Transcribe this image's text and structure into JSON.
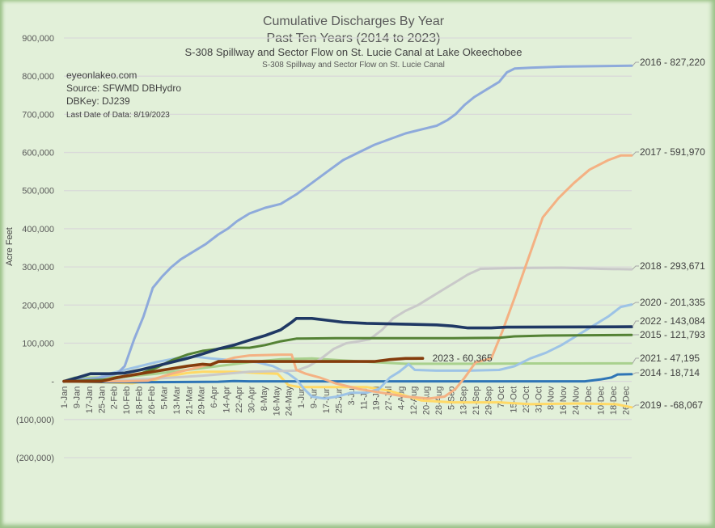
{
  "chart_data": {
    "type": "line",
    "title": "Cumulative Discharges By Year",
    "subtitle": "Past Ten Years (2014 to 2023)",
    "subtitle2": "S-308 Spillway and Sector Flow on St. Lucie Canal at Lake Okeechobee",
    "subtitle3": "S-308 Spillway and Sector Flow on St. Lucie Canal",
    "xlabel": "",
    "ylabel": "Acre Feet",
    "ylim": [
      -200000,
      900000
    ],
    "yticks": [
      900000,
      800000,
      700000,
      600000,
      500000,
      400000,
      300000,
      200000,
      100000,
      0,
      -100000,
      -200000
    ],
    "ytick_labels": [
      "900,000",
      "800,000",
      "700,000",
      "600,000",
      "500,000",
      "400,000",
      "300,000",
      "200,000",
      "100,000",
      "-",
      "(100,000)",
      "(200,000)"
    ],
    "xlim_day_of_year": [
      1,
      365
    ],
    "grid": true,
    "legend": "end-of-line labels (right)",
    "x_tick_labels": [
      "1-Jan",
      "9-Jan",
      "17-Jan",
      "25-Jan",
      "2-Feb",
      "10-Feb",
      "18-Feb",
      "26-Feb",
      "5-Mar",
      "13-Mar",
      "21-Mar",
      "29-Mar",
      "6-Apr",
      "14-Apr",
      "22-Apr",
      "30-Apr",
      "8-May",
      "16-May",
      "24-May",
      "1-Jun",
      "9-Jun",
      "17-Jun",
      "25-Jun",
      "3-Jul",
      "11-Jul",
      "19-Jul",
      "27-Jul",
      "4-Aug",
      "12-Aug",
      "20-Aug",
      "28-Aug",
      "5-Sep",
      "13-Sep",
      "21-Sep",
      "29-Sep",
      "7-Oct",
      "15-Oct",
      "23-Oct",
      "31-Oct",
      "8-Nov",
      "16-Nov",
      "24-Nov",
      "2-Dec",
      "10-Dec",
      "18-Dec",
      "26-Dec"
    ],
    "annotations": {
      "source_lines": [
        "eyeonlakeo.com",
        "Source: SFWMD DBHydro",
        "DBKey: DJ239"
      ],
      "last_date": "Last Date of Data: 8/19/2023"
    },
    "series": [
      {
        "name": "2016",
        "label": "2016 - 827,220",
        "color": "#8eaadb",
        "points": [
          [
            1,
            0
          ],
          [
            25,
            10000
          ],
          [
            35,
            20000
          ],
          [
            40,
            40000
          ],
          [
            46,
            110000
          ],
          [
            52,
            170000
          ],
          [
            58,
            245000
          ],
          [
            64,
            275000
          ],
          [
            70,
            300000
          ],
          [
            76,
            320000
          ],
          [
            84,
            340000
          ],
          [
            92,
            360000
          ],
          [
            100,
            385000
          ],
          [
            106,
            400000
          ],
          [
            112,
            420000
          ],
          [
            120,
            440000
          ],
          [
            130,
            455000
          ],
          [
            140,
            465000
          ],
          [
            150,
            490000
          ],
          [
            160,
            520000
          ],
          [
            170,
            550000
          ],
          [
            180,
            580000
          ],
          [
            190,
            600000
          ],
          [
            200,
            620000
          ],
          [
            210,
            635000
          ],
          [
            220,
            650000
          ],
          [
            230,
            660000
          ],
          [
            240,
            670000
          ],
          [
            247,
            685000
          ],
          [
            252,
            700000
          ],
          [
            258,
            725000
          ],
          [
            264,
            745000
          ],
          [
            272,
            765000
          ],
          [
            280,
            785000
          ],
          [
            285,
            810000
          ],
          [
            290,
            820000
          ],
          [
            300,
            822000
          ],
          [
            320,
            825000
          ],
          [
            365,
            827220
          ]
        ]
      },
      {
        "name": "2017",
        "label": "2017 - 591,970",
        "color": "#f4b183",
        "points": [
          [
            1,
            0
          ],
          [
            40,
            0
          ],
          [
            55,
            2000
          ],
          [
            62,
            10000
          ],
          [
            70,
            20000
          ],
          [
            80,
            30000
          ],
          [
            90,
            40000
          ],
          [
            100,
            50000
          ],
          [
            110,
            62000
          ],
          [
            120,
            68000
          ],
          [
            140,
            70000
          ],
          [
            147,
            70000
          ],
          [
            150,
            30000
          ],
          [
            156,
            20000
          ],
          [
            165,
            10000
          ],
          [
            175,
            -5000
          ],
          [
            190,
            -20000
          ],
          [
            205,
            -30000
          ],
          [
            220,
            -40000
          ],
          [
            235,
            -45000
          ],
          [
            245,
            -40000
          ],
          [
            252,
            -20000
          ],
          [
            258,
            10000
          ],
          [
            265,
            50000
          ],
          [
            275,
            60000
          ],
          [
            282,
            130000
          ],
          [
            290,
            220000
          ],
          [
            296,
            290000
          ],
          [
            302,
            360000
          ],
          [
            308,
            430000
          ],
          [
            318,
            480000
          ],
          [
            328,
            520000
          ],
          [
            338,
            555000
          ],
          [
            350,
            580000
          ],
          [
            358,
            592000
          ],
          [
            365,
            591970
          ]
        ]
      },
      {
        "name": "2018",
        "label": "2018 - 293,671",
        "color": "#c9c9c9",
        "points": [
          [
            1,
            0
          ],
          [
            30,
            2000
          ],
          [
            60,
            7000
          ],
          [
            90,
            15000
          ],
          [
            120,
            25000
          ],
          [
            150,
            28000
          ],
          [
            158,
            40000
          ],
          [
            166,
            60000
          ],
          [
            174,
            85000
          ],
          [
            182,
            100000
          ],
          [
            190,
            105000
          ],
          [
            197,
            110000
          ],
          [
            205,
            135000
          ],
          [
            212,
            165000
          ],
          [
            220,
            185000
          ],
          [
            228,
            200000
          ],
          [
            236,
            220000
          ],
          [
            244,
            240000
          ],
          [
            252,
            260000
          ],
          [
            260,
            280000
          ],
          [
            268,
            295000
          ],
          [
            290,
            297000
          ],
          [
            320,
            298000
          ],
          [
            345,
            295000
          ],
          [
            365,
            293671
          ]
        ]
      },
      {
        "name": "2020",
        "label": "2020 - 201,335",
        "color": "#9dc3e6",
        "points": [
          [
            1,
            0
          ],
          [
            20,
            5000
          ],
          [
            30,
            20000
          ],
          [
            45,
            35000
          ],
          [
            60,
            50000
          ],
          [
            75,
            62000
          ],
          [
            85,
            65000
          ],
          [
            95,
            60000
          ],
          [
            110,
            55000
          ],
          [
            125,
            50000
          ],
          [
            135,
            40000
          ],
          [
            145,
            20000
          ],
          [
            150,
            5000
          ],
          [
            155,
            -20000
          ],
          [
            160,
            -40000
          ],
          [
            168,
            -45000
          ],
          [
            176,
            -40000
          ],
          [
            185,
            -30000
          ],
          [
            195,
            -30000
          ],
          [
            203,
            -20000
          ],
          [
            210,
            10000
          ],
          [
            216,
            25000
          ],
          [
            222,
            45000
          ],
          [
            226,
            30000
          ],
          [
            240,
            28000
          ],
          [
            260,
            28000
          ],
          [
            280,
            30000
          ],
          [
            290,
            40000
          ],
          [
            300,
            60000
          ],
          [
            310,
            75000
          ],
          [
            320,
            95000
          ],
          [
            330,
            120000
          ],
          [
            340,
            145000
          ],
          [
            350,
            170000
          ],
          [
            358,
            195000
          ],
          [
            365,
            201335
          ]
        ]
      },
      {
        "name": "2022",
        "label": "2022 - 143,084",
        "color": "#1f3864",
        "points": [
          [
            1,
            0
          ],
          [
            10,
            10000
          ],
          [
            18,
            20000
          ],
          [
            30,
            20000
          ],
          [
            40,
            22000
          ],
          [
            50,
            30000
          ],
          [
            60,
            40000
          ],
          [
            70,
            50000
          ],
          [
            80,
            60000
          ],
          [
            90,
            72000
          ],
          [
            100,
            85000
          ],
          [
            110,
            95000
          ],
          [
            120,
            108000
          ],
          [
            130,
            120000
          ],
          [
            140,
            135000
          ],
          [
            147,
            155000
          ],
          [
            150,
            165000
          ],
          [
            160,
            165000
          ],
          [
            170,
            160000
          ],
          [
            180,
            155000
          ],
          [
            195,
            152000
          ],
          [
            220,
            150000
          ],
          [
            240,
            148000
          ],
          [
            250,
            145000
          ],
          [
            260,
            140000
          ],
          [
            275,
            140000
          ],
          [
            285,
            142000
          ],
          [
            365,
            143084
          ]
        ]
      },
      {
        "name": "2015",
        "label": "2015 - 121,793",
        "color": "#548235",
        "points": [
          [
            1,
            0
          ],
          [
            30,
            5000
          ],
          [
            50,
            20000
          ],
          [
            60,
            35000
          ],
          [
            70,
            55000
          ],
          [
            80,
            70000
          ],
          [
            90,
            80000
          ],
          [
            100,
            85000
          ],
          [
            110,
            88000
          ],
          [
            120,
            88000
          ],
          [
            130,
            95000
          ],
          [
            140,
            105000
          ],
          [
            150,
            112000
          ],
          [
            175,
            113000
          ],
          [
            200,
            113000
          ],
          [
            250,
            113000
          ],
          [
            280,
            114000
          ],
          [
            290,
            118000
          ],
          [
            310,
            120000
          ],
          [
            365,
            121793
          ]
        ]
      },
      {
        "name": "2021",
        "label": "2021 - 47,195",
        "color": "#a9d18e",
        "points": [
          [
            1,
            0
          ],
          [
            8,
            10000
          ],
          [
            20,
            10000
          ],
          [
            40,
            12000
          ],
          [
            60,
            20000
          ],
          [
            80,
            30000
          ],
          [
            100,
            40000
          ],
          [
            120,
            50000
          ],
          [
            140,
            58000
          ],
          [
            160,
            60000
          ],
          [
            180,
            55000
          ],
          [
            200,
            50000
          ],
          [
            220,
            46000
          ],
          [
            260,
            46000
          ],
          [
            300,
            47000
          ],
          [
            365,
            47195
          ]
        ]
      },
      {
        "name": "2014",
        "label": "2014 - 18,714",
        "color": "#2e75b6",
        "points": [
          [
            1,
            0
          ],
          [
            30,
            -2000
          ],
          [
            60,
            -2000
          ],
          [
            100,
            -1000
          ],
          [
            110,
            1000
          ],
          [
            120,
            0
          ],
          [
            200,
            0
          ],
          [
            300,
            0
          ],
          [
            335,
            0
          ],
          [
            345,
            5000
          ],
          [
            352,
            10000
          ],
          [
            356,
            18000
          ],
          [
            365,
            18714
          ]
        ]
      },
      {
        "name": "2019",
        "label": "2019 - -68,067",
        "color": "#ffd966",
        "points": [
          [
            1,
            0
          ],
          [
            30,
            -3000
          ],
          [
            45,
            -5000
          ],
          [
            60,
            5000
          ],
          [
            70,
            15000
          ],
          [
            80,
            22000
          ],
          [
            90,
            25000
          ],
          [
            110,
            25000
          ],
          [
            125,
            22000
          ],
          [
            138,
            20000
          ],
          [
            145,
            -10000
          ],
          [
            152,
            -15000
          ],
          [
            170,
            -15000
          ],
          [
            195,
            -15000
          ],
          [
            210,
            -25000
          ],
          [
            230,
            -50000
          ],
          [
            250,
            -55000
          ],
          [
            280,
            -55000
          ],
          [
            300,
            -60000
          ],
          [
            330,
            -58000
          ],
          [
            355,
            -60000
          ],
          [
            365,
            -68067
          ]
        ]
      },
      {
        "name": "2023",
        "label": "2023 - 60,365",
        "color": "#843c0c",
        "points": [
          [
            1,
            0
          ],
          [
            25,
            0
          ],
          [
            35,
            10000
          ],
          [
            50,
            20000
          ],
          [
            65,
            30000
          ],
          [
            80,
            40000
          ],
          [
            90,
            45000
          ],
          [
            95,
            43000
          ],
          [
            100,
            52000
          ],
          [
            120,
            52000
          ],
          [
            150,
            52000
          ],
          [
            180,
            52000
          ],
          [
            200,
            52000
          ],
          [
            210,
            57000
          ],
          [
            220,
            60000
          ],
          [
            231,
            60365
          ]
        ]
      }
    ]
  }
}
